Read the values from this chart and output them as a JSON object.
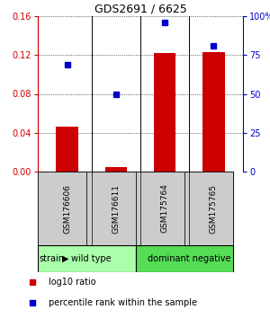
{
  "title": "GDS2691 / 6625",
  "samples": [
    "GSM176606",
    "GSM176611",
    "GSM175764",
    "GSM175765"
  ],
  "log10_ratio": [
    0.046,
    0.005,
    0.122,
    0.123
  ],
  "percentile_rank": [
    69,
    50,
    96,
    81
  ],
  "ylim_left": [
    0,
    0.16
  ],
  "ylim_right": [
    0,
    100
  ],
  "yticks_left": [
    0,
    0.04,
    0.08,
    0.12,
    0.16
  ],
  "yticks_right": [
    0,
    25,
    50,
    75,
    100
  ],
  "ytick_labels_right": [
    "0",
    "25",
    "50",
    "75",
    "100%"
  ],
  "bar_color": "#cc0000",
  "dot_color": "#0000cc",
  "groups": [
    {
      "label": "wild type",
      "samples": [
        0,
        1
      ],
      "color": "#aaffaa"
    },
    {
      "label": "dominant negative",
      "samples": [
        2,
        3
      ],
      "color": "#55dd55"
    }
  ],
  "strain_label": "strain",
  "legend_items": [
    {
      "color": "#cc0000",
      "label": "log10 ratio"
    },
    {
      "color": "#0000cc",
      "label": "percentile rank within the sample"
    }
  ],
  "title_color": "#000000",
  "left_axis_color": "#cc0000",
  "right_axis_color": "#0000cc",
  "bar_width": 0.45,
  "background_color": "#ffffff",
  "plot_bg_color": "#ffffff",
  "sample_box_color": "#cccccc",
  "sample_box_border": "#000000"
}
